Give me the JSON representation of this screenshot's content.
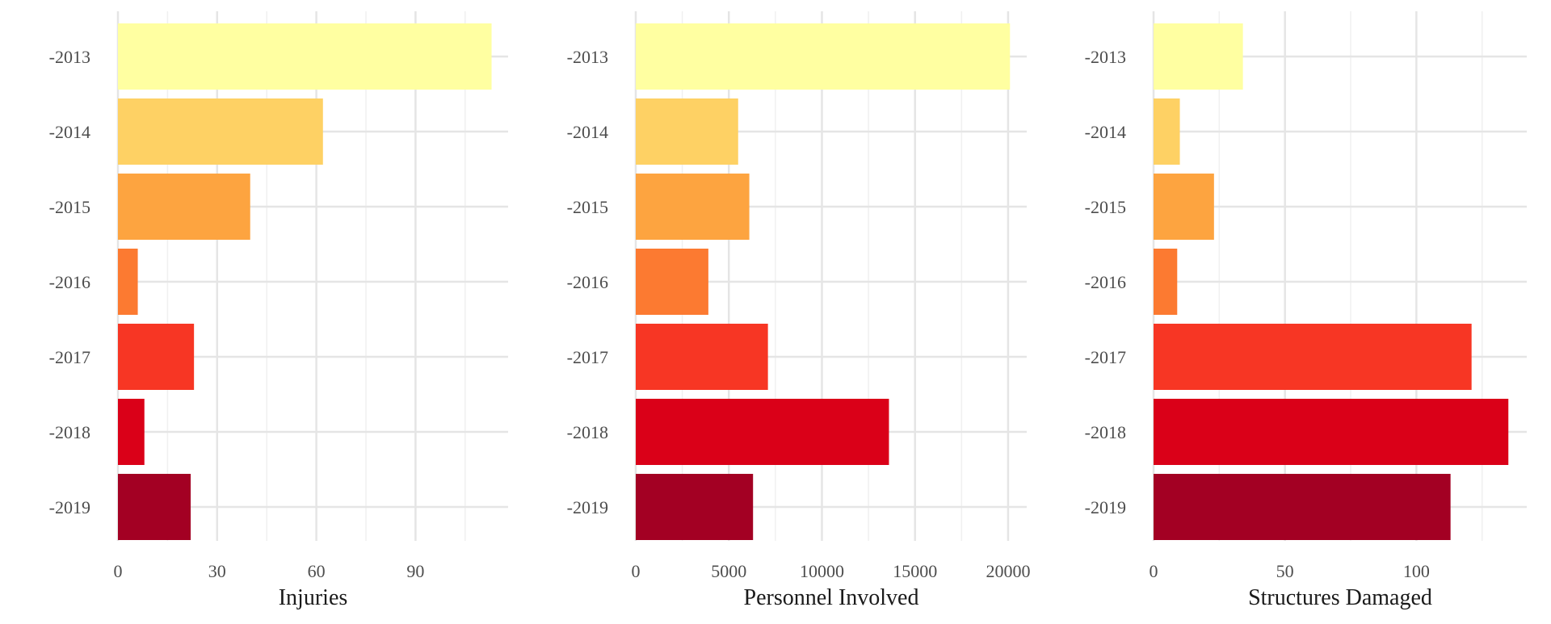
{
  "colors": {
    "background": "#ffffff",
    "grid_major": "#e5e5e5",
    "grid_minor": "#f0f0f0",
    "bar_palette": [
      "#FFFFA1",
      "#FED164",
      "#FDA440",
      "#FC7A31",
      "#F73624",
      "#DA0018",
      "#A30023"
    ]
  },
  "chart_data": [
    {
      "type": "bar",
      "orientation": "horizontal",
      "categories": [
        "-2013",
        "-2014",
        "-2015",
        "-2016",
        "-2017",
        "-2018",
        "-2019"
      ],
      "values": [
        113,
        62,
        40,
        6,
        23,
        8,
        22
      ],
      "xlabel": "Injuries",
      "ylabel": "",
      "xlim": [
        0,
        118
      ],
      "xticks": [
        0,
        30,
        60,
        90
      ],
      "grid": true,
      "legend": "none"
    },
    {
      "type": "bar",
      "orientation": "horizontal",
      "categories": [
        "-2013",
        "-2014",
        "-2015",
        "-2016",
        "-2017",
        "-2018",
        "-2019"
      ],
      "values": [
        20100,
        5500,
        6100,
        3900,
        7100,
        13600,
        6300
      ],
      "xlabel": "Personnel Involved",
      "ylabel": "",
      "xlim": [
        0,
        21000
      ],
      "xticks": [
        0,
        5000,
        10000,
        15000,
        20000
      ],
      "grid": true,
      "legend": "none"
    },
    {
      "type": "bar",
      "orientation": "horizontal",
      "categories": [
        "-2013",
        "-2014",
        "-2015",
        "-2016",
        "-2017",
        "-2018",
        "-2019"
      ],
      "values": [
        34,
        10,
        23,
        9,
        121,
        135,
        113
      ],
      "xlabel": "Structures Damaged",
      "ylabel": "",
      "xlim": [
        0,
        142
      ],
      "xticks": [
        0,
        50,
        100
      ],
      "grid": true,
      "legend": "none"
    }
  ]
}
